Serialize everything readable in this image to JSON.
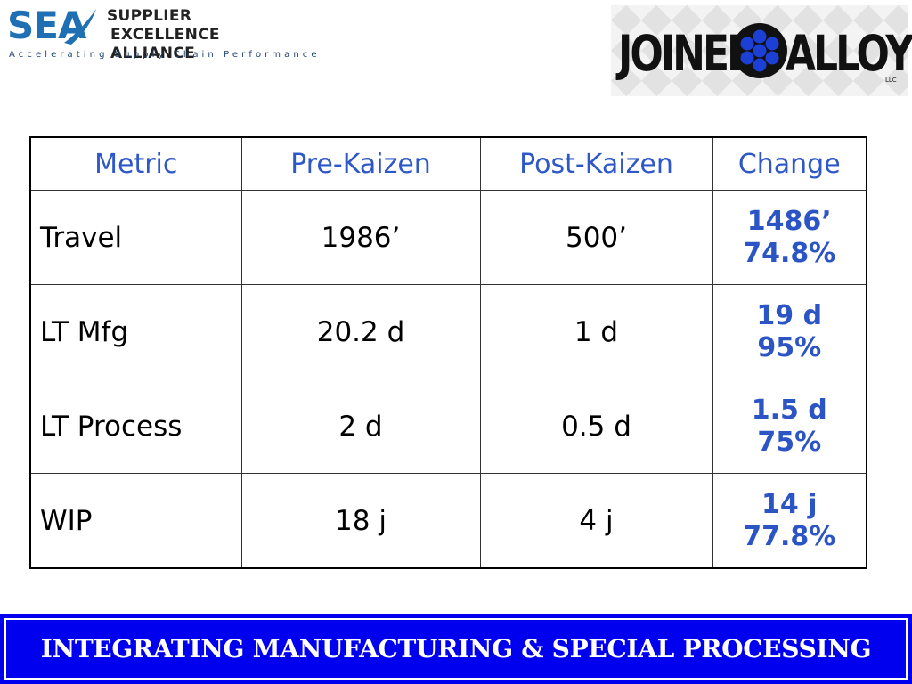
{
  "logos": {
    "sea": {
      "mark": "SEA",
      "name_line1": "SUPPLIER",
      "name_line2": "EXCELLENCE ALLIANCE",
      "tagline": "Accelerating Supply Chain Performance"
    },
    "joined_alloys": {
      "left": "JOINED",
      "right": "ALLOYS",
      "suffix": "LLC"
    }
  },
  "table": {
    "headers": [
      "Metric",
      "Pre-Kaizen",
      "Post-Kaizen",
      "Change"
    ],
    "rows": [
      {
        "metric": "Travel",
        "pre": "1986’",
        "post": "500’",
        "change_amount": "1486’",
        "change_pct": "74.8%"
      },
      {
        "metric": "LT Mfg",
        "pre": "20.2 d",
        "post": "1 d",
        "change_amount": "19 d",
        "change_pct": "95%"
      },
      {
        "metric": "LT Process",
        "pre": "2 d",
        "post": "0.5 d",
        "change_amount": "1.5 d",
        "change_pct": "75%"
      },
      {
        "metric": "WIP",
        "pre": "18 j",
        "post": "4 j",
        "change_amount": "14 j",
        "change_pct": "77.8%"
      }
    ]
  },
  "footer": {
    "text": "INTEGRATING MANUFACTURING & SPECIAL PROCESSING"
  },
  "colors": {
    "header_text": "#2e58c8",
    "change_text": "#2b54c4",
    "footer_bg": "#0000ee",
    "sea_blue": "#1f6fb4"
  }
}
